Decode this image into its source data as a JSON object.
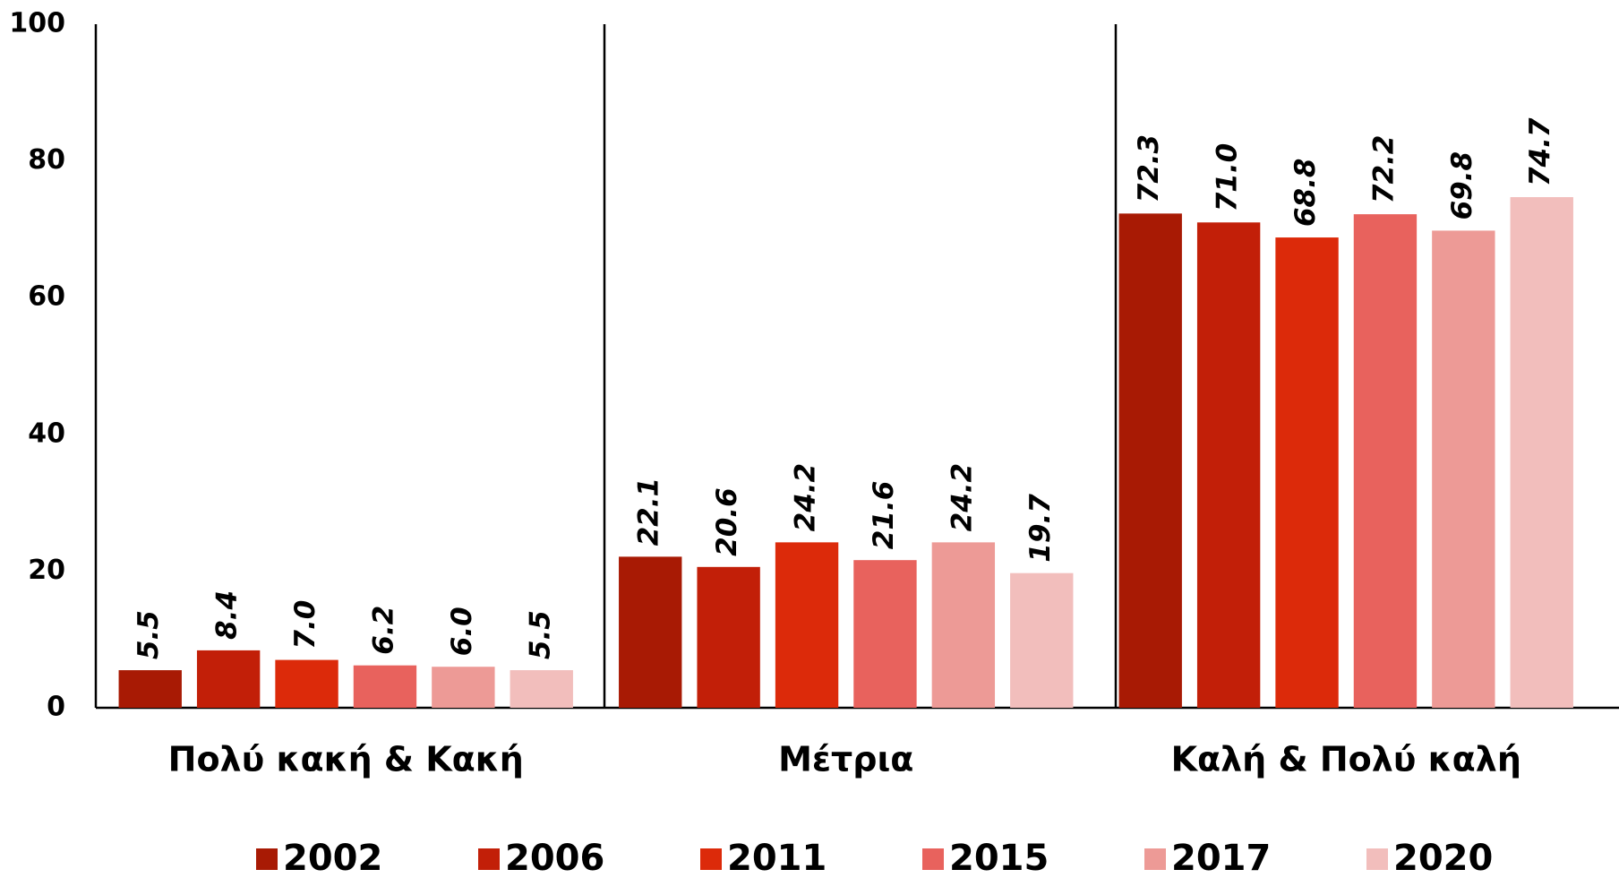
{
  "chart_data": {
    "type": "bar",
    "categories": [
      "Πολύ κακή & Κακή",
      "Μέτρια",
      "Καλή & Πολύ καλή"
    ],
    "series": [
      {
        "name": "2002",
        "color": "#a81a04",
        "values": [
          5.5,
          22.1,
          72.3
        ],
        "value_labels": [
          "5.5",
          "22.1",
          "72.3"
        ]
      },
      {
        "name": "2006",
        "color": "#c21f08",
        "values": [
          8.4,
          20.6,
          71.0
        ],
        "value_labels": [
          "8.4",
          "20.6",
          "71.0"
        ]
      },
      {
        "name": "2011",
        "color": "#dc2a0a",
        "values": [
          7.0,
          24.2,
          68.8
        ],
        "value_labels": [
          "7.0",
          "24.2",
          "68.8"
        ]
      },
      {
        "name": "2015",
        "color": "#e8625d",
        "values": [
          6.2,
          21.6,
          72.2
        ],
        "value_labels": [
          "6.2",
          "21.6",
          "72.2"
        ]
      },
      {
        "name": "2017",
        "color": "#ed9a96",
        "values": [
          6.0,
          24.2,
          69.8
        ],
        "value_labels": [
          "6.0",
          "24.2",
          "69.8"
        ]
      },
      {
        "name": "2020",
        "color": "#f2bebc",
        "values": [
          5.5,
          19.7,
          74.7
        ],
        "value_labels": [
          "5.5",
          "19.7",
          "74.7"
        ]
      }
    ],
    "ylim": [
      0,
      100
    ],
    "yticks": [
      0,
      20,
      40,
      60,
      80,
      100
    ],
    "legend": "bottom"
  }
}
